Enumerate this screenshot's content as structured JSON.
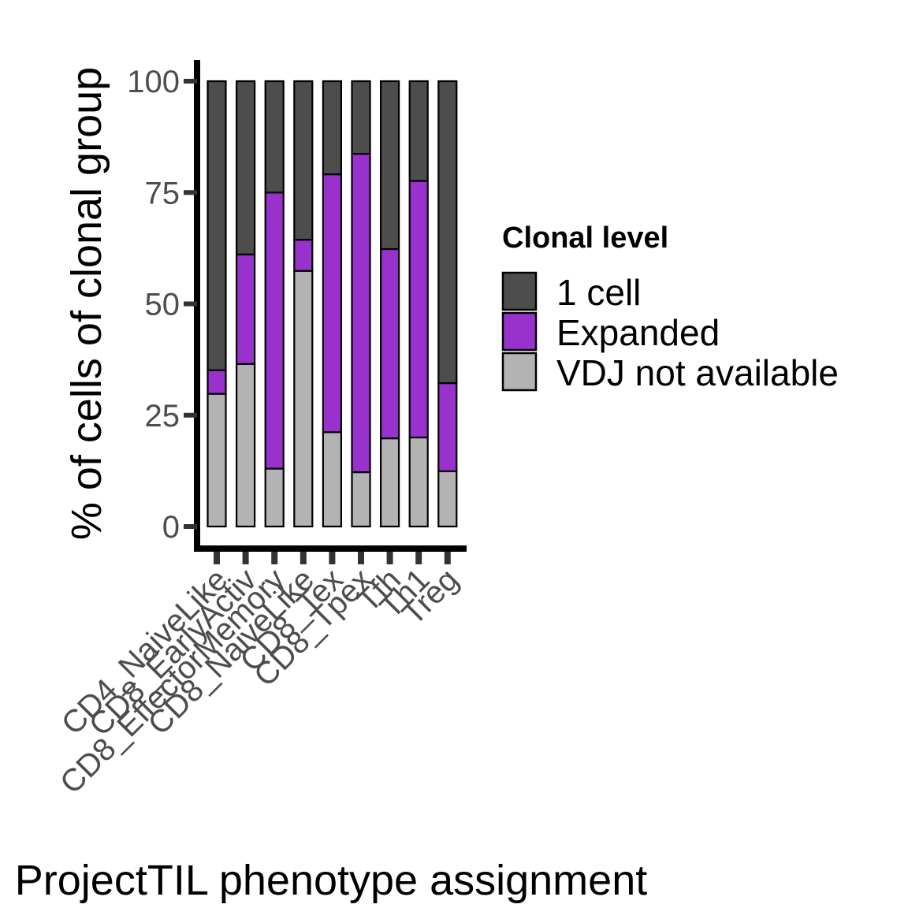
{
  "chart_data": {
    "type": "bar",
    "stacked": true,
    "categories": [
      "CD4_NaiveLike",
      "CD8_EarlyActiv",
      "CD8_EffectorMemory",
      "CD8_NaiveLike",
      "CD8_Tex",
      "CD8_Tpex",
      "Tfh",
      "Th1",
      "Treg"
    ],
    "series": [
      {
        "name": "VDJ not available",
        "color": "#b3b3b3",
        "values": [
          29.8,
          36.5,
          13.0,
          57.4,
          21.2,
          12.2,
          19.8,
          20.0,
          12.4
        ]
      },
      {
        "name": "Expanded",
        "color": "#9932cc",
        "values": [
          5.3,
          24.6,
          62.0,
          7.0,
          57.9,
          71.5,
          42.5,
          57.6,
          19.8
        ]
      },
      {
        "name": "1 cell",
        "color": "#4d4d4d",
        "values": [
          64.9,
          38.9,
          25.0,
          35.6,
          20.9,
          16.3,
          37.7,
          22.4,
          67.8
        ]
      }
    ],
    "legend": {
      "title": "Clonal level",
      "position": "right",
      "order": [
        "1 cell",
        "Expanded",
        "VDJ not available"
      ]
    },
    "xlabel": "ProjectTIL phenotype assignment",
    "ylabel": "% of cells of clonal group",
    "ylim": [
      0,
      100
    ],
    "yticks": [
      0,
      25,
      50,
      75,
      100
    ],
    "grid": false
  }
}
